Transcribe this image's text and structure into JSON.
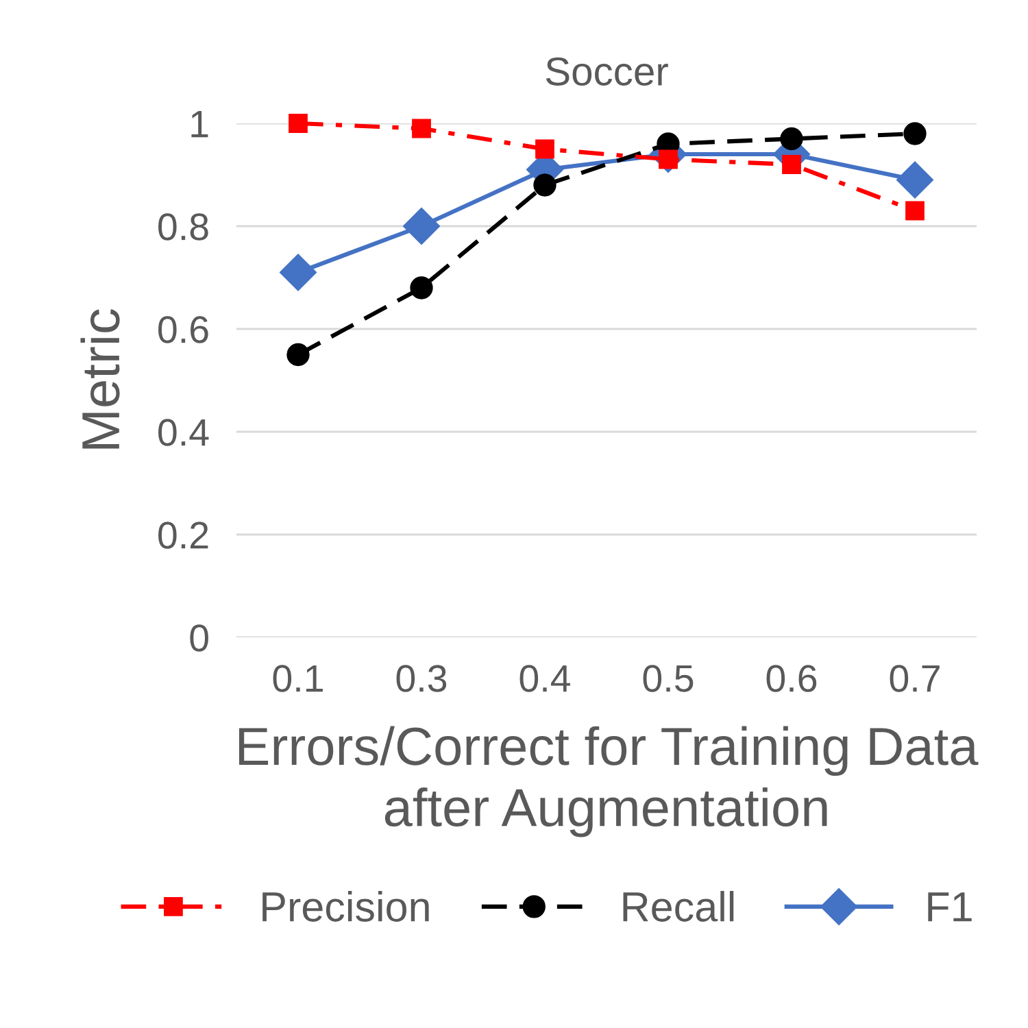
{
  "chart_data": {
    "type": "line",
    "title": "Soccer",
    "xlabel": "Errors/Correct for Training Data\nafter Augmentation",
    "ylabel": "Metric",
    "categories": [
      "0.1",
      "0.3",
      "0.4",
      "0.5",
      "0.6",
      "0.7"
    ],
    "series": [
      {
        "name": "Precision",
        "color": "#ff0000",
        "marker": "square",
        "line_style": "dashdot",
        "values": [
          1.0,
          0.99,
          0.95,
          0.93,
          0.92,
          0.83
        ]
      },
      {
        "name": "Recall",
        "color": "#000000",
        "marker": "circle",
        "line_style": "dashed",
        "values": [
          0.55,
          0.68,
          0.88,
          0.96,
          0.97,
          0.98
        ]
      },
      {
        "name": "F1",
        "color": "#4472c4",
        "marker": "diamond",
        "line_style": "solid",
        "values": [
          0.71,
          0.8,
          0.91,
          0.94,
          0.94,
          0.89
        ]
      }
    ],
    "ylim": [
      0,
      1
    ],
    "yticks": [
      0,
      0.2,
      0.4,
      0.6,
      0.8,
      1
    ],
    "grid": "y",
    "legend": "bottom"
  }
}
